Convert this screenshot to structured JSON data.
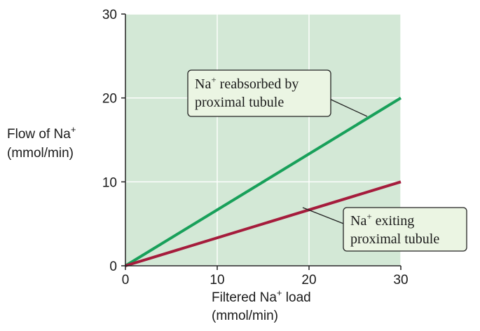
{
  "chart_data": {
    "type": "line",
    "x": [
      0,
      30
    ],
    "series": [
      {
        "name_parts": [
          "Na",
          "+",
          " reabsorbed by",
          "proximal tubule"
        ],
        "values": [
          0,
          20
        ],
        "color": "#18a05a"
      },
      {
        "name_parts": [
          "Na",
          "+",
          " exiting",
          "proximal tubule"
        ],
        "values": [
          0,
          10
        ],
        "color": "#a51c3c"
      }
    ],
    "xlim": [
      0,
      30
    ],
    "ylim": [
      0,
      30
    ],
    "xticks": [
      0,
      10,
      20,
      30
    ],
    "yticks": [
      0,
      10,
      20,
      30
    ],
    "xlabel_parts": [
      "Filtered Na",
      "+",
      " load",
      "(mmol/min)"
    ],
    "ylabel_parts": [
      "Flow of Na",
      "+",
      "(mmol/min)"
    ],
    "grid": true,
    "colors": {
      "plot_background": "#d3e8d6",
      "gridlines": "#ffffff",
      "axes": "#222222",
      "callout_box": "#ebf5e3"
    }
  }
}
